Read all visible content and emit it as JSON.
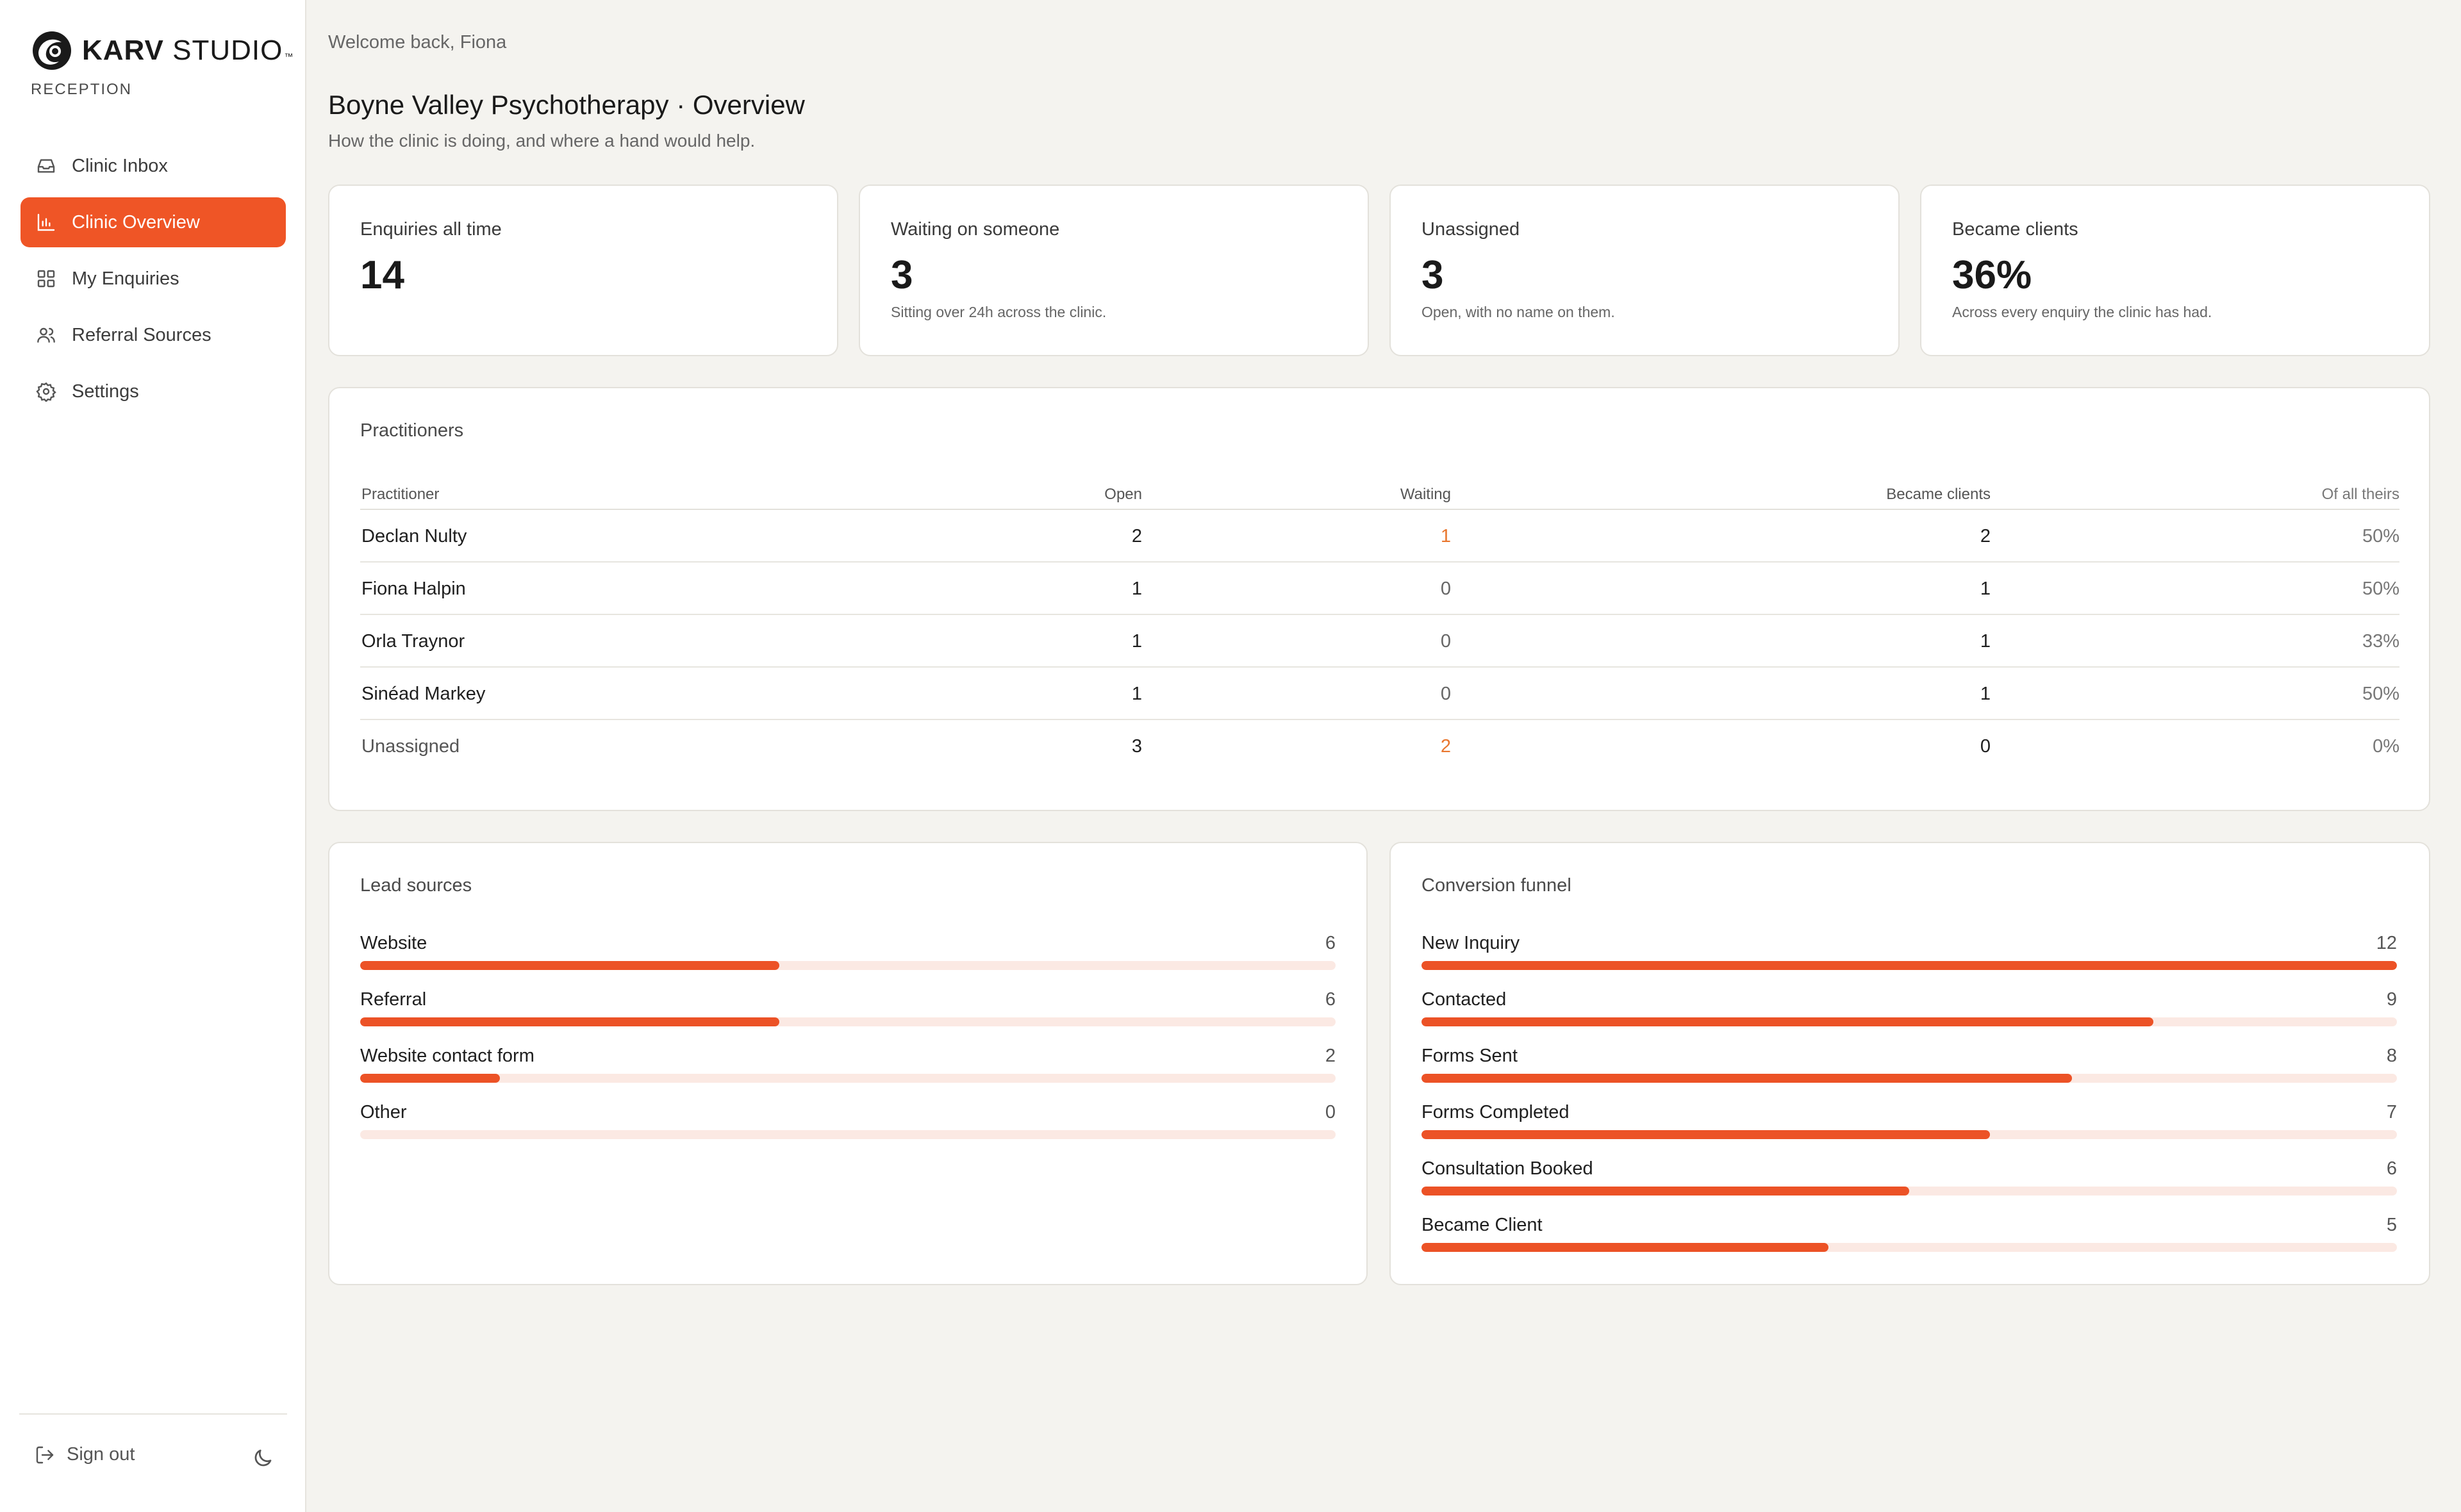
{
  "brand": {
    "name_bold": "KARV",
    "name_rest": "STUDIO",
    "trademark": "™",
    "subtitle": "RECEPTION",
    "accent_color": "#ef5526"
  },
  "sidebar": {
    "items": [
      {
        "label": "Clinic Inbox",
        "icon": "inbox-icon",
        "active": false
      },
      {
        "label": "Clinic Overview",
        "icon": "bar-chart-icon",
        "active": true
      },
      {
        "label": "My Enquiries",
        "icon": "grid-icon",
        "active": false
      },
      {
        "label": "Referral Sources",
        "icon": "users-icon",
        "active": false
      },
      {
        "label": "Settings",
        "icon": "gear-icon",
        "active": false
      }
    ],
    "signout_label": "Sign out",
    "theme_icon": "moon-icon"
  },
  "header": {
    "welcome": "Welcome back, Fiona",
    "title": "Boyne Valley Psychotherapy · Overview",
    "subtitle": "How the clinic is doing, and where a hand would help."
  },
  "stats": [
    {
      "title": "Enquiries all time",
      "value": "14",
      "note": ""
    },
    {
      "title": "Waiting on someone",
      "value": "3",
      "note": "Sitting over 24h across the clinic."
    },
    {
      "title": "Unassigned",
      "value": "3",
      "note": "Open, with no name on them."
    },
    {
      "title": "Became clients",
      "value": "36%",
      "note": "Across every enquiry the clinic has had."
    }
  ],
  "practitioners": {
    "title": "Practitioners",
    "columns": [
      "Practitioner",
      "Open",
      "Waiting",
      "Became clients",
      "Of all theirs"
    ],
    "rows": [
      {
        "name": "Declan Nulty",
        "open": "2",
        "waiting": "1",
        "became": "2",
        "pct": "50%"
      },
      {
        "name": "Fiona Halpin",
        "open": "1",
        "waiting": "0",
        "became": "1",
        "pct": "50%"
      },
      {
        "name": "Orla Traynor",
        "open": "1",
        "waiting": "0",
        "became": "1",
        "pct": "33%"
      },
      {
        "name": "Sinéad Markey",
        "open": "1",
        "waiting": "0",
        "became": "1",
        "pct": "50%"
      },
      {
        "name": "Unassigned",
        "open": "3",
        "waiting": "2",
        "became": "0",
        "pct": "0%"
      }
    ]
  },
  "lead_sources": {
    "title": "Lead sources",
    "items": [
      {
        "label": "Website",
        "count": "6",
        "fraction": 0.43
      },
      {
        "label": "Referral",
        "count": "6",
        "fraction": 0.43
      },
      {
        "label": "Website contact form",
        "count": "2",
        "fraction": 0.143
      },
      {
        "label": "Other",
        "count": "0",
        "fraction": 0
      }
    ]
  },
  "funnel": {
    "title": "Conversion funnel",
    "items": [
      {
        "label": "New Inquiry",
        "count": "12",
        "fraction": 1.0
      },
      {
        "label": "Contacted",
        "count": "9",
        "fraction": 0.75
      },
      {
        "label": "Forms Sent",
        "count": "8",
        "fraction": 0.667
      },
      {
        "label": "Forms Completed",
        "count": "7",
        "fraction": 0.583
      },
      {
        "label": "Consultation Booked",
        "count": "6",
        "fraction": 0.5
      },
      {
        "label": "Became Client",
        "count": "5",
        "fraction": 0.417
      }
    ]
  }
}
